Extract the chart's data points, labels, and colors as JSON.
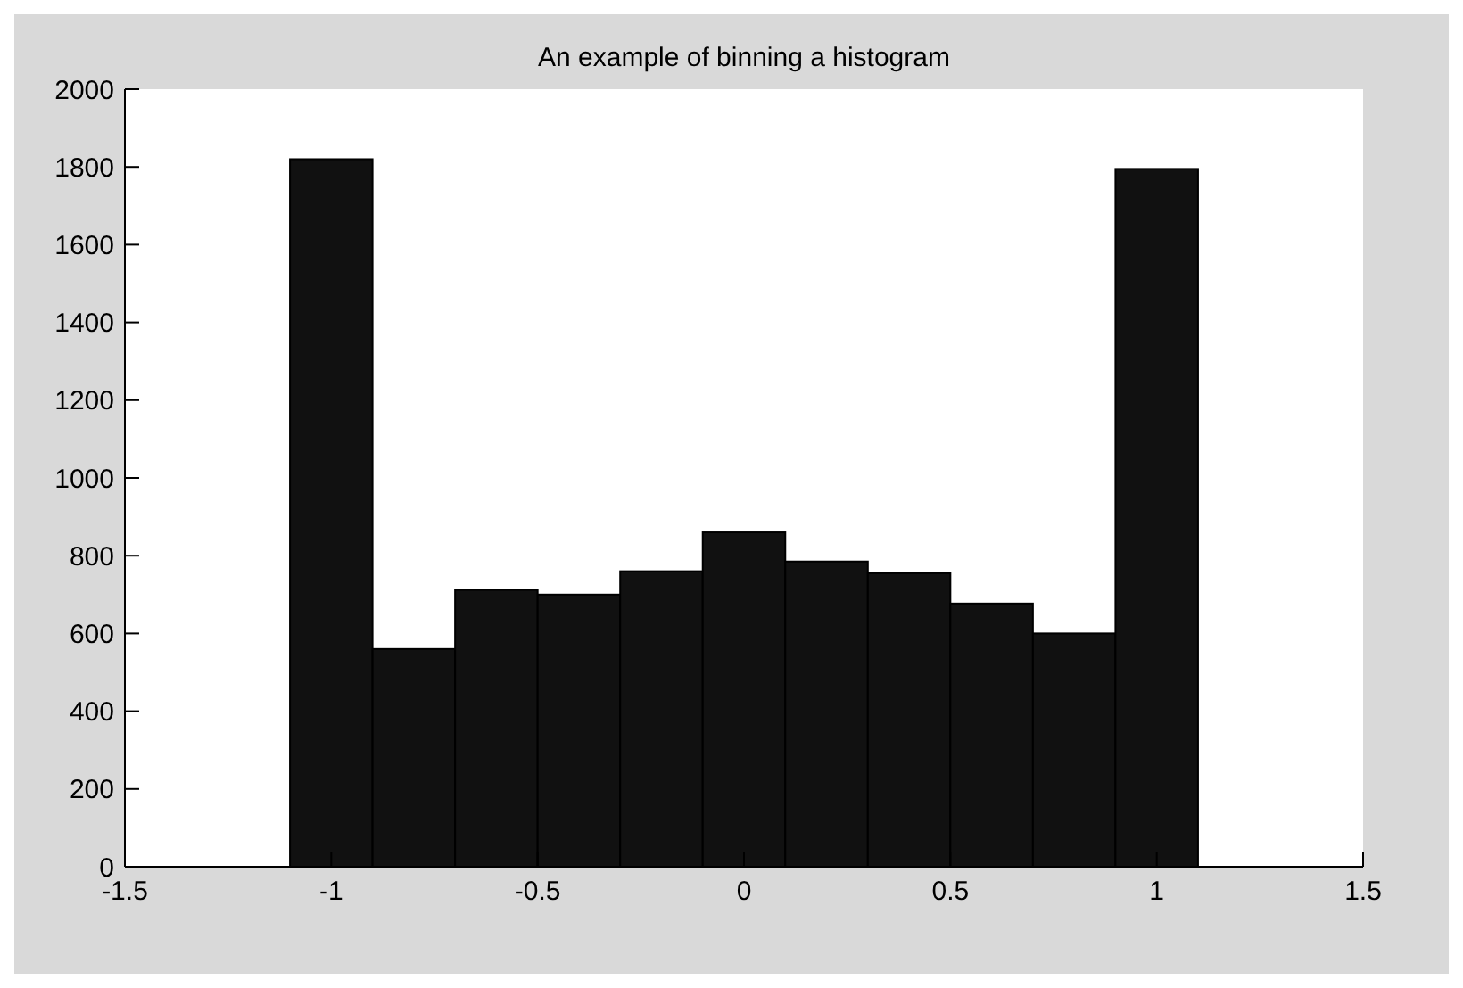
{
  "chart_data": {
    "type": "histogram",
    "title": "An example of binning a histogram",
    "bins": [
      -1.1,
      -0.9,
      -0.7,
      -0.5,
      -0.3,
      -0.1,
      0.1,
      0.3,
      0.5,
      0.7,
      0.9,
      1.1
    ],
    "values": [
      1820,
      560,
      712,
      700,
      760,
      860,
      785,
      755,
      677,
      600,
      1795
    ],
    "color": "#111111",
    "xlim": [
      -1.5,
      1.5
    ],
    "xticks": [
      -1.5,
      -1,
      -0.5,
      0,
      0.5,
      1,
      1.5
    ],
    "ylim": [
      0,
      2000
    ],
    "yticks": [
      0,
      200,
      400,
      600,
      800,
      1000,
      1200,
      1400,
      1600,
      1800,
      2000
    ],
    "grid": false
  }
}
